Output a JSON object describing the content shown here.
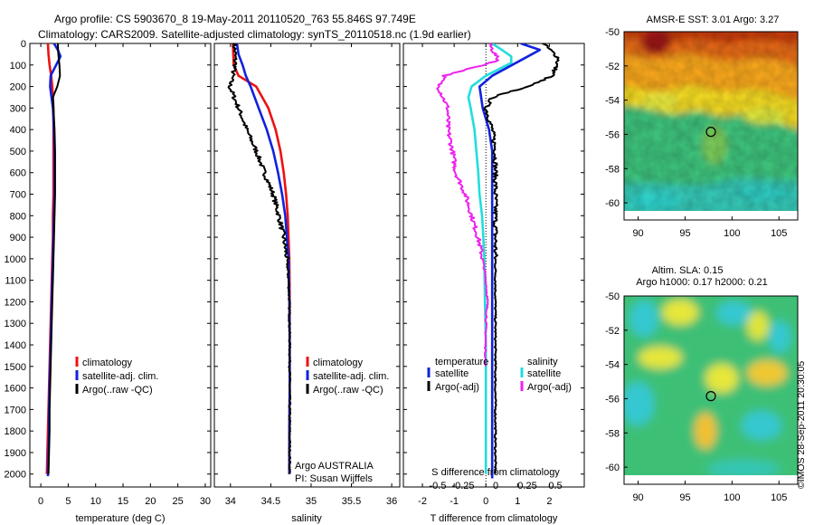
{
  "header": {
    "line1": "Argo profile: CS 5903670_8 19-May-2011 20110520_763 55.846S 97.749E",
    "line2": "Climatology: CARS2009. Satellite-adjusted climatology: synTS_20110518.nc (1.9d earlier)"
  },
  "depth_axis": {
    "ticks": [
      0,
      100,
      200,
      300,
      400,
      500,
      600,
      700,
      800,
      900,
      1000,
      1100,
      1200,
      1300,
      1400,
      1500,
      1600,
      1700,
      1800,
      1900,
      2000
    ],
    "range": [
      0,
      2060
    ],
    "inverted": true
  },
  "legend_profiles": {
    "climatology": "climatology",
    "satellite": "satellite-adj. clim.",
    "argo": "Argo(..raw -QC)"
  },
  "legend_diff": {
    "temperature_head": "temperature",
    "salinity_head": "salinity",
    "satellite": "satellite",
    "argo": "Argo(-adj)"
  },
  "float_info": {
    "line1": "Argo AUSTRALIA",
    "line2": "PI: Susan Wijffels"
  },
  "colors": {
    "climatology": "#ee1111",
    "satellite": "#1122dd",
    "argo": "#000000",
    "sal_satellite": "#22dddd",
    "sal_argo": "#ee22ee"
  },
  "chart_data": [
    {
      "type": "line",
      "id": "temperature",
      "xlabel": "temperature (deg C)",
      "xlim": [
        -2,
        31
      ],
      "xticks": [
        "0",
        "5",
        "10",
        "15",
        "20",
        "25",
        "30"
      ],
      "xtick_values": [
        0,
        5,
        10,
        15,
        20,
        25,
        30
      ],
      "ylim": [
        0,
        2060
      ],
      "series": [
        {
          "name": "climatology",
          "color": "#ee1111",
          "points": [
            [
              1.3,
              0
            ],
            [
              1.4,
              50
            ],
            [
              1.6,
              100
            ],
            [
              1.9,
              150
            ],
            [
              2.1,
              200
            ],
            [
              2.3,
              300
            ],
            [
              2.3,
              400
            ],
            [
              2.3,
              500
            ],
            [
              2.3,
              600
            ],
            [
              2.3,
              700
            ],
            [
              2.2,
              800
            ],
            [
              2.2,
              900
            ],
            [
              2.1,
              1000
            ],
            [
              2.0,
              1100
            ],
            [
              1.9,
              1200
            ],
            [
              1.8,
              1300
            ],
            [
              1.7,
              1400
            ],
            [
              1.6,
              1500
            ],
            [
              1.5,
              1600
            ],
            [
              1.4,
              1700
            ],
            [
              1.3,
              1800
            ],
            [
              1.2,
              1900
            ],
            [
              1.1,
              2000
            ]
          ]
        },
        {
          "name": "satellite-adj. clim.",
          "color": "#1122dd",
          "points": [
            [
              2.4,
              0
            ],
            [
              3.1,
              30
            ],
            [
              3.6,
              60
            ],
            [
              2.8,
              100
            ],
            [
              1.8,
              150
            ],
            [
              1.7,
              200
            ],
            [
              2.2,
              300
            ],
            [
              2.4,
              400
            ],
            [
              2.5,
              500
            ],
            [
              2.5,
              600
            ],
            [
              2.5,
              700
            ],
            [
              2.4,
              800
            ],
            [
              2.3,
              900
            ],
            [
              2.2,
              1000
            ],
            [
              2.1,
              1100
            ],
            [
              2.0,
              1200
            ],
            [
              1.9,
              1300
            ],
            [
              1.8,
              1400
            ],
            [
              1.7,
              1500
            ],
            [
              1.6,
              1600
            ],
            [
              1.5,
              1700
            ],
            [
              1.5,
              1800
            ],
            [
              1.4,
              1900
            ],
            [
              1.3,
              2010
            ]
          ]
        },
        {
          "name": "Argo(..raw -QC)",
          "color": "#000000",
          "points": [
            [
              3.1,
              0
            ],
            [
              3.2,
              50
            ],
            [
              3.4,
              100
            ],
            [
              3.5,
              150
            ],
            [
              3.0,
              200
            ],
            [
              2.2,
              250
            ],
            [
              2.3,
              300
            ],
            [
              2.5,
              400
            ],
            [
              2.6,
              500
            ],
            [
              2.6,
              600
            ],
            [
              2.6,
              700
            ],
            [
              2.5,
              800
            ],
            [
              2.4,
              900
            ],
            [
              2.3,
              1000
            ],
            [
              2.2,
              1100
            ],
            [
              2.1,
              1200
            ],
            [
              2.0,
              1300
            ],
            [
              1.9,
              1400
            ],
            [
              1.8,
              1500
            ],
            [
              1.7,
              1600
            ],
            [
              1.6,
              1700
            ],
            [
              1.6,
              1800
            ],
            [
              1.5,
              1900
            ],
            [
              1.4,
              2000
            ]
          ]
        }
      ]
    },
    {
      "type": "line",
      "id": "salinity",
      "xlabel": "salinity",
      "xlim": [
        33.8,
        36.1
      ],
      "xticks": [
        "34",
        "34.5",
        "35",
        "35.5",
        "36"
      ],
      "xtick_values": [
        34,
        34.5,
        35,
        35.5,
        36
      ],
      "ylim": [
        0,
        2060
      ],
      "series": [
        {
          "name": "climatology",
          "color": "#ee1111",
          "points": [
            [
              34.03,
              0
            ],
            [
              34.04,
              100
            ],
            [
              34.1,
              150
            ],
            [
              34.32,
              200
            ],
            [
              34.47,
              300
            ],
            [
              34.56,
              400
            ],
            [
              34.62,
              500
            ],
            [
              34.66,
              600
            ],
            [
              34.69,
              700
            ],
            [
              34.71,
              800
            ],
            [
              34.72,
              900
            ],
            [
              34.73,
              1000
            ],
            [
              34.735,
              1200
            ],
            [
              34.735,
              1400
            ],
            [
              34.735,
              1600
            ],
            [
              34.73,
              1800
            ],
            [
              34.73,
              2000
            ]
          ]
        },
        {
          "name": "satellite-adj. clim.",
          "color": "#1122dd",
          "points": [
            [
              34.08,
              0
            ],
            [
              34.1,
              50
            ],
            [
              34.15,
              100
            ],
            [
              34.19,
              150
            ],
            [
              34.25,
              200
            ],
            [
              34.35,
              300
            ],
            [
              34.45,
              400
            ],
            [
              34.53,
              500
            ],
            [
              34.59,
              600
            ],
            [
              34.64,
              700
            ],
            [
              34.68,
              800
            ],
            [
              34.7,
              900
            ],
            [
              34.72,
              1000
            ],
            [
              34.73,
              1200
            ],
            [
              34.735,
              1400
            ],
            [
              34.735,
              1600
            ],
            [
              34.73,
              1800
            ],
            [
              34.73,
              2000
            ]
          ]
        },
        {
          "name": "Argo(..raw -QC)",
          "color": "#000000",
          "points": [
            [
              34.05,
              0
            ],
            [
              34.06,
              100
            ],
            [
              33.99,
              200
            ],
            [
              34.1,
              300
            ],
            [
              34.2,
              400
            ],
            [
              34.32,
              500
            ],
            [
              34.42,
              600
            ],
            [
              34.53,
              700
            ],
            [
              34.6,
              800
            ],
            [
              34.66,
              900
            ],
            [
              34.7,
              1000
            ],
            [
              34.72,
              1100
            ],
            [
              34.73,
              1200
            ],
            [
              34.735,
              1400
            ],
            [
              34.735,
              1600
            ],
            [
              34.735,
              1800
            ],
            [
              34.735,
              2000
            ]
          ]
        }
      ]
    },
    {
      "type": "line",
      "id": "difference",
      "xlabel": "T difference from climatology",
      "x2label": "S difference from climatology",
      "xlim": [
        -2.6,
        3.1
      ],
      "xticks": [
        "-2",
        "-1",
        "0",
        "1",
        "2"
      ],
      "xtick_values": [
        -2,
        -1,
        0,
        1,
        2
      ],
      "x2ticks": [
        "-0.5",
        "-0.25",
        "0",
        "0.25",
        "0.5"
      ],
      "x2tick_values": [
        -0.5,
        -0.25,
        0,
        0.25,
        0.5
      ],
      "ylim": [
        0,
        2060
      ],
      "series": [
        {
          "name": "temperature satellite",
          "color": "#1122dd",
          "points": [
            [
              1.1,
              0
            ],
            [
              1.7,
              30
            ],
            [
              1.2,
              70
            ],
            [
              0.2,
              150
            ],
            [
              -0.2,
              200
            ],
            [
              -0.1,
              300
            ],
            [
              0.1,
              400
            ],
            [
              0.2,
              500
            ],
            [
              0.2,
              600
            ],
            [
              0.2,
              700
            ],
            [
              0.2,
              800
            ],
            [
              0.2,
              900
            ],
            [
              0.2,
              1000
            ],
            [
              0.2,
              1200
            ],
            [
              0.2,
              1400
            ],
            [
              0.2,
              1600
            ],
            [
              0.2,
              1800
            ],
            [
              0.2,
              2020
            ]
          ]
        },
        {
          "name": "temperature Argo(-adj)",
          "color": "#000000",
          "points": [
            [
              1.8,
              0
            ],
            [
              2.1,
              40
            ],
            [
              2.3,
              70
            ],
            [
              2.1,
              150
            ],
            [
              1.3,
              200
            ],
            [
              0.2,
              250
            ],
            [
              0.0,
              300
            ],
            [
              0.2,
              400
            ],
            [
              0.3,
              500
            ],
            [
              0.3,
              600
            ],
            [
              0.3,
              700
            ],
            [
              0.3,
              800
            ],
            [
              0.3,
              900
            ],
            [
              0.3,
              1000
            ],
            [
              0.3,
              1200
            ],
            [
              0.3,
              1400
            ],
            [
              0.3,
              1600
            ],
            [
              0.3,
              1800
            ],
            [
              0.3,
              2000
            ]
          ]
        },
        {
          "name": "salinity satellite",
          "color": "#22dddd",
          "points": [
            [
              0.2,
              0
            ],
            [
              0.5,
              30
            ],
            [
              0.8,
              60
            ],
            [
              0.8,
              90
            ],
            [
              0.0,
              150
            ],
            [
              -0.45,
              200
            ],
            [
              -0.55,
              250
            ],
            [
              -0.48,
              300
            ],
            [
              -0.36,
              400
            ],
            [
              -0.3,
              500
            ],
            [
              -0.24,
              600
            ],
            [
              -0.2,
              700
            ],
            [
              -0.12,
              800
            ],
            [
              -0.08,
              900
            ],
            [
              -0.05,
              1000
            ],
            [
              -0.03,
              1200
            ],
            [
              0.0,
              1400
            ],
            [
              0.0,
              1600
            ],
            [
              0.0,
              1800
            ],
            [
              0.0,
              2000
            ]
          ]
        },
        {
          "name": "salinity Argo(-adj)",
          "color": "#ee22ee",
          "points": [
            [
              0.1,
              0
            ],
            [
              0.4,
              80
            ],
            [
              -1.3,
              150
            ],
            [
              -1.5,
              200
            ],
            [
              -1.2,
              300
            ],
            [
              -1.2,
              400
            ],
            [
              -1.05,
              500
            ],
            [
              -0.95,
              600
            ],
            [
              -0.65,
              700
            ],
            [
              -0.45,
              800
            ],
            [
              -0.25,
              900
            ],
            [
              -0.1,
              1000
            ],
            [
              0.0,
              1100
            ],
            [
              0.05,
              1200
            ],
            [
              0.0,
              1300
            ],
            [
              -0.02,
              1500
            ]
          ]
        }
      ]
    },
    {
      "type": "heatmap",
      "id": "sst_map",
      "title": "AMSR-E SST: 3.01  Argo: 3.27",
      "xticks": [
        "90",
        "95",
        "100",
        "105"
      ],
      "xtick_values": [
        90,
        95,
        100,
        105
      ],
      "yticks": [
        "-50",
        "-52",
        "-54",
        "-56",
        "-58",
        "-60"
      ],
      "ytick_values": [
        -50,
        -52,
        -54,
        -56,
        -58,
        -60
      ],
      "xlim": [
        88.5,
        107
      ],
      "ylim": [
        -61,
        -50
      ],
      "marker": {
        "lon": 97.75,
        "lat": -55.85
      }
    },
    {
      "type": "heatmap",
      "id": "sla_map",
      "title": "Altim. SLA: 0.15",
      "subtitle": "Argo h1000: 0.17 h2000: 0.21",
      "xticks": [
        "90",
        "95",
        "100",
        "105"
      ],
      "xtick_values": [
        90,
        95,
        100,
        105
      ],
      "yticks": [
        "-50",
        "-52",
        "-54",
        "-56",
        "-58",
        "-60"
      ],
      "ytick_values": [
        -50,
        -52,
        -54,
        -56,
        -58,
        -60
      ],
      "xlim": [
        88.5,
        107
      ],
      "ylim": [
        -61,
        -50
      ],
      "marker": {
        "lon": 97.75,
        "lat": -55.85
      }
    }
  ],
  "footer": {
    "stamp": "©IMOS 28-Sep-2011 20:30:05"
  }
}
